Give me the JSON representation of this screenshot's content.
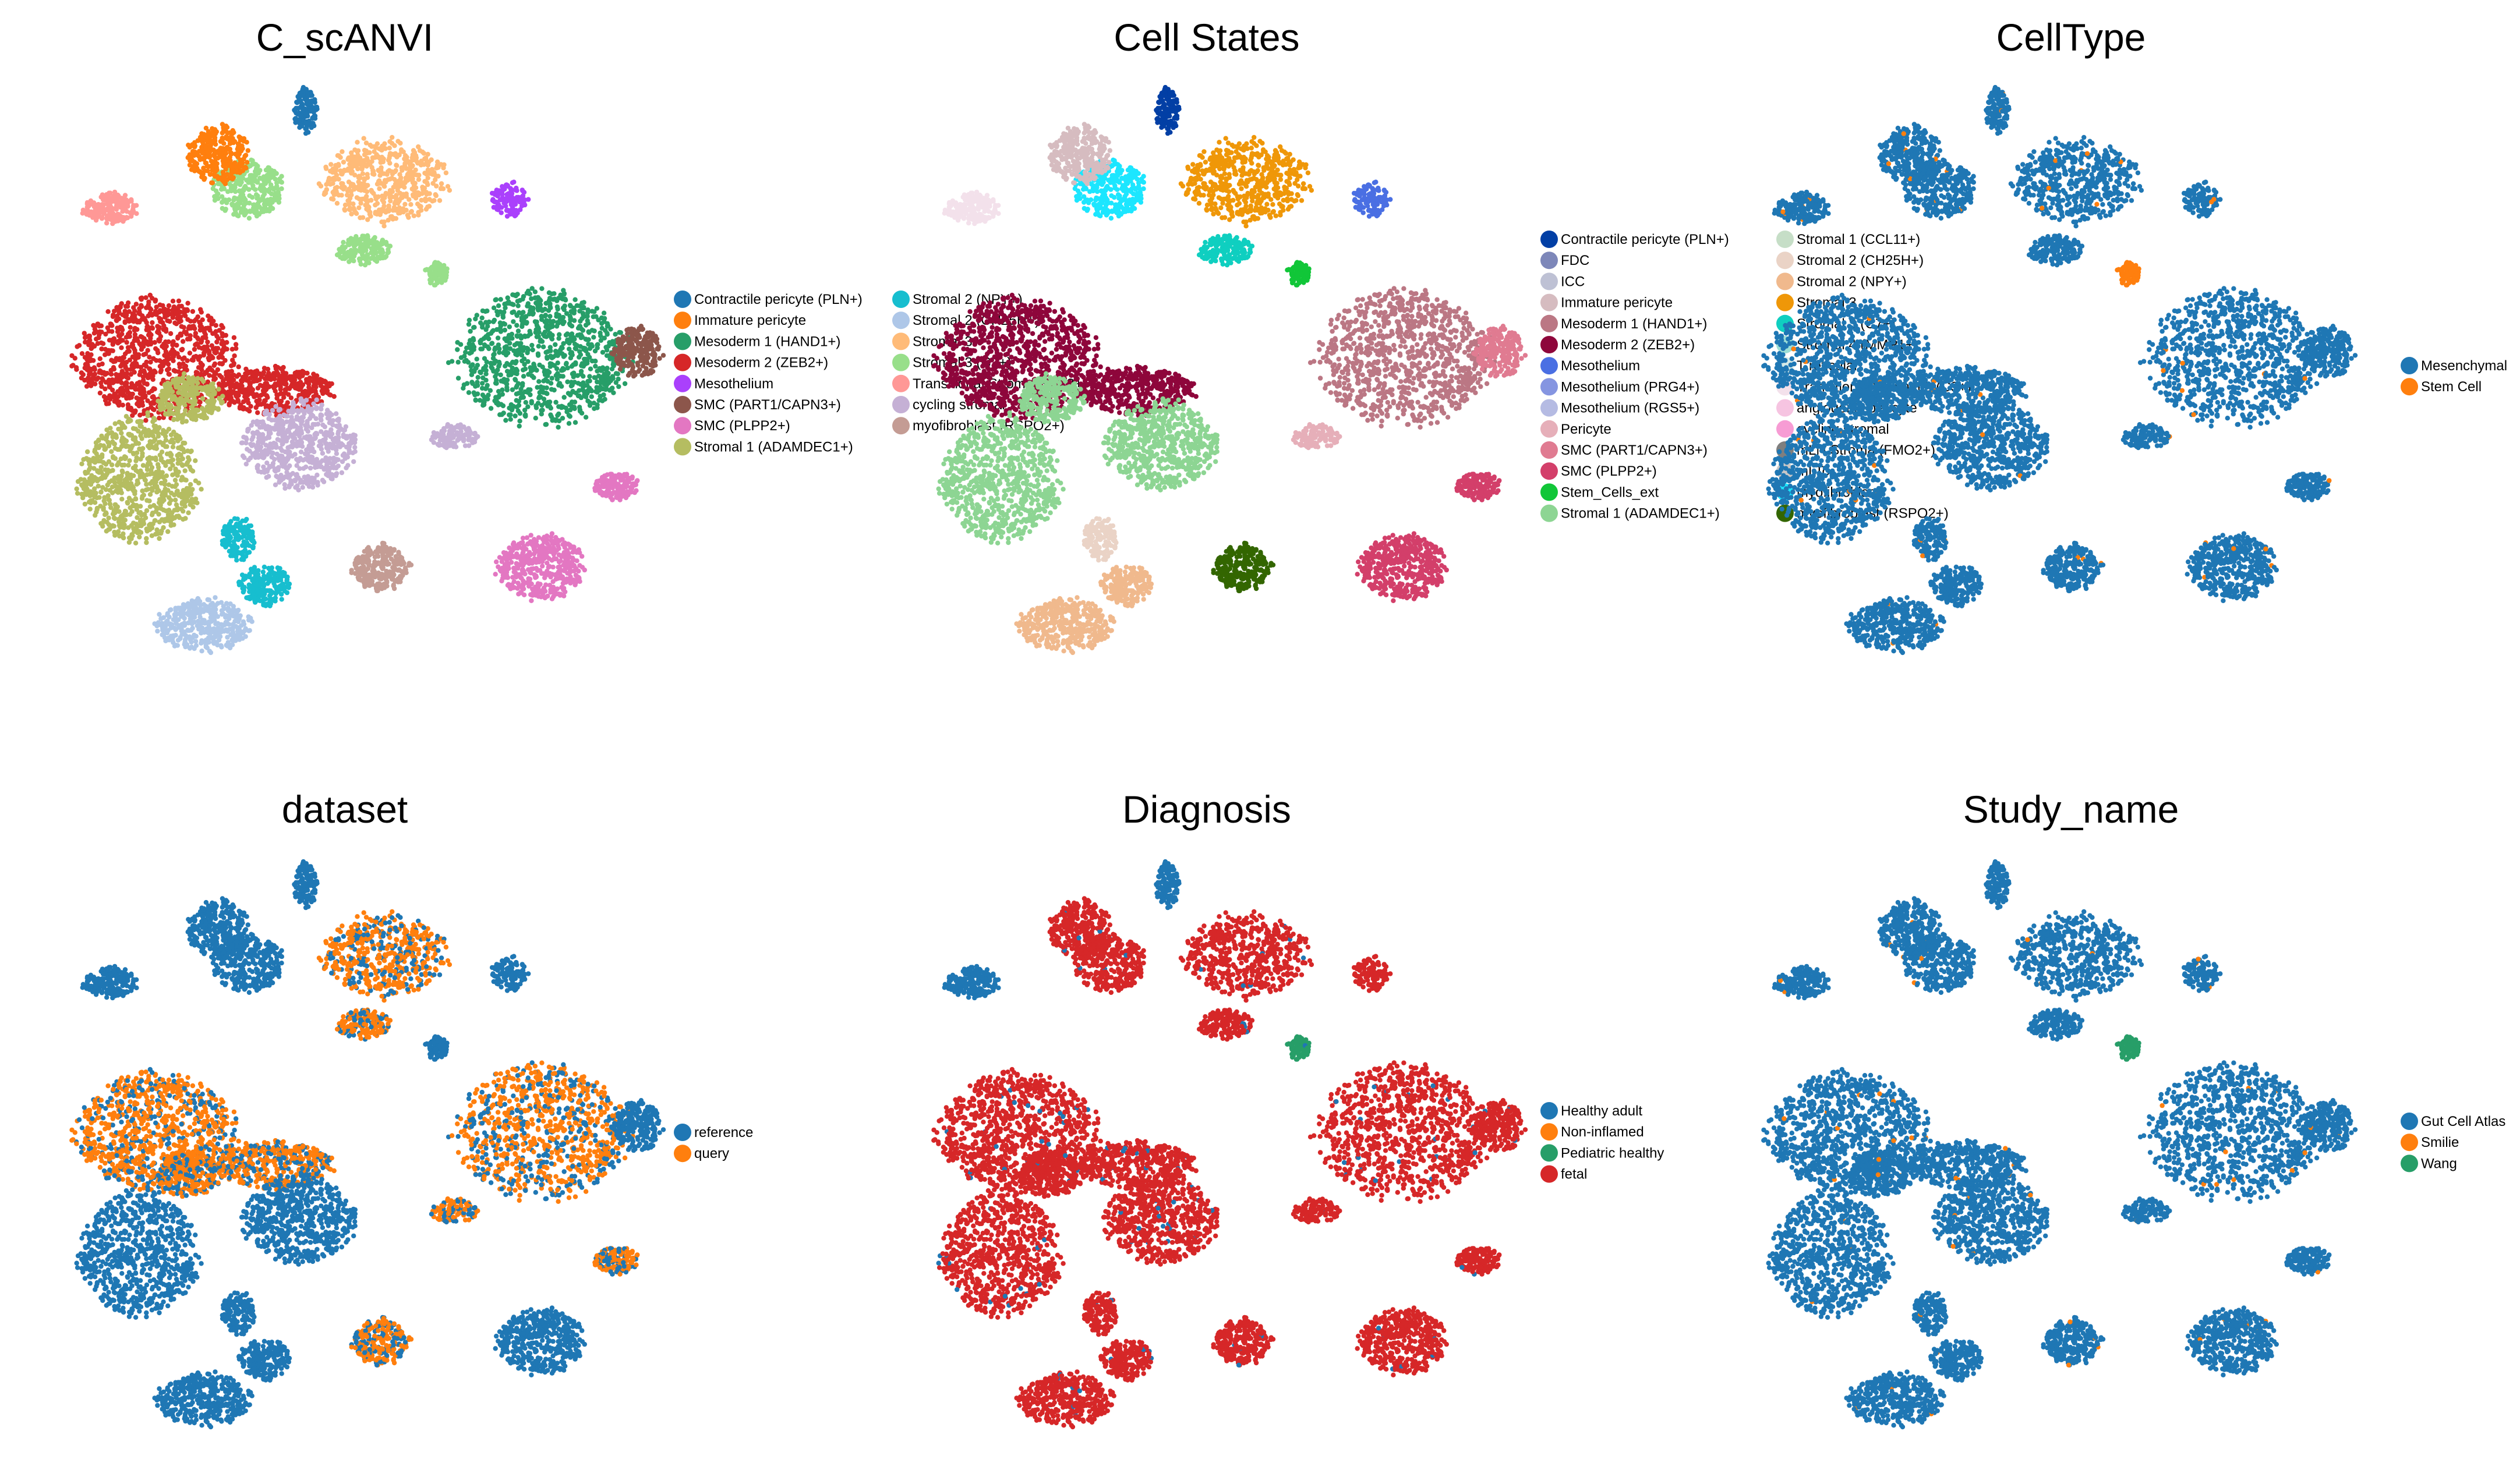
{
  "figure": {
    "title": ""
  },
  "chart_data": [
    {
      "type": "scatter",
      "title": "C_scANVI",
      "xlabel": "",
      "ylabel": "",
      "axes_visible": false,
      "grid": false,
      "legend_placement": "right",
      "legend_columns": 2,
      "legend": [
        {
          "label": "Contractile pericyte (PLN+)",
          "color": "#1f77b4"
        },
        {
          "label": "Immature pericyte",
          "color": "#ff7f0e"
        },
        {
          "label": "Mesoderm 1 (HAND1+)",
          "color": "#279e68"
        },
        {
          "label": "Mesoderm 2 (ZEB2+)",
          "color": "#d62728"
        },
        {
          "label": "Mesothelium",
          "color": "#aa40fc"
        },
        {
          "label": "SMC (PART1/CAPN3+)",
          "color": "#8c564b"
        },
        {
          "label": "SMC (PLPP2+)",
          "color": "#e377c2"
        },
        {
          "label": "Stromal 1 (ADAMDEC1+)",
          "color": "#b5bd61"
        },
        {
          "label": "Stromal 2 (NPY+)",
          "color": "#17becf"
        },
        {
          "label": "Stromal 2 (CH25H+)",
          "color": "#aec7e8"
        },
        {
          "label": "Stromal 3",
          "color": "#ffbb78"
        },
        {
          "label": "Stromal 3 (C7+)",
          "color": "#98df8a"
        },
        {
          "label": "Transitional Stromal 3 (C3+)",
          "color": "#ff9896"
        },
        {
          "label": "cycling stromal",
          "color": "#c5b0d5"
        },
        {
          "label": "myofibroblast (RSPO2+)",
          "color": "#c49c94"
        }
      ]
    },
    {
      "type": "scatter",
      "title": "Cell States",
      "xlabel": "",
      "ylabel": "",
      "axes_visible": false,
      "grid": false,
      "legend_placement": "right",
      "legend_columns": 2,
      "legend": [
        {
          "label": "Contractile pericyte (PLN+)",
          "color": "#023fa5"
        },
        {
          "label": "FDC",
          "color": "#7d87b9"
        },
        {
          "label": "ICC",
          "color": "#bec1d4"
        },
        {
          "label": "Immature pericyte",
          "color": "#d6bcc0"
        },
        {
          "label": "Mesoderm 1 (HAND1+)",
          "color": "#bb7784"
        },
        {
          "label": "Mesoderm 2 (ZEB2+)",
          "color": "#8e063b"
        },
        {
          "label": "Mesothelium",
          "color": "#4a6fe3"
        },
        {
          "label": "Mesothelium (PRG4+)",
          "color": "#8595e1"
        },
        {
          "label": "Mesothelium (RGS5+)",
          "color": "#b5bbe3"
        },
        {
          "label": "Pericyte",
          "color": "#e6afb9"
        },
        {
          "label": "SMC (PART1/CAPN3+)",
          "color": "#e07b91"
        },
        {
          "label": "SMC (PLPP2+)",
          "color": "#d33f6a"
        },
        {
          "label": "Stem_Cells_ext",
          "color": "#11c638"
        },
        {
          "label": "Stromal 1 (ADAMDEC1+)",
          "color": "#8dd593"
        },
        {
          "label": "Stromal 1 (CCL11+)",
          "color": "#c6dec7"
        },
        {
          "label": "Stromal 2 (CH25H+)",
          "color": "#ead3c6"
        },
        {
          "label": "Stromal 2 (NPY+)",
          "color": "#f0b98d"
        },
        {
          "label": "Stromal 3",
          "color": "#ef9708"
        },
        {
          "label": "Stromal 3 (C7+)",
          "color": "#0fcfc0"
        },
        {
          "label": "Stromal 4 (MMP1+)",
          "color": "#9cded6"
        },
        {
          "label": "T reticular",
          "color": "#d5eae7"
        },
        {
          "label": "Transitional Stromal 3 (C3+)",
          "color": "#f3e1eb"
        },
        {
          "label": "angiogenic pericyte",
          "color": "#f6c4e1"
        },
        {
          "label": "cycling stromal",
          "color": "#f79cd4"
        },
        {
          "label": "mLN Stroma (FMO2+)",
          "color": "#7f7f7f"
        },
        {
          "label": "mLTo",
          "color": "#c7c7c7"
        },
        {
          "label": "myofibroblast",
          "color": "#1ce6ff"
        },
        {
          "label": "myofibroblast (RSPO2+)",
          "color": "#336600"
        }
      ]
    },
    {
      "type": "scatter",
      "title": "CellType",
      "xlabel": "",
      "ylabel": "",
      "axes_visible": false,
      "grid": false,
      "legend_placement": "right",
      "legend_columns": 1,
      "legend": [
        {
          "label": "Mesenchymal",
          "color": "#1f77b4"
        },
        {
          "label": "Stem Cell",
          "color": "#ff7f0e"
        }
      ]
    },
    {
      "type": "scatter",
      "title": "dataset",
      "xlabel": "",
      "ylabel": "",
      "axes_visible": false,
      "grid": false,
      "legend_placement": "right",
      "legend_columns": 1,
      "legend": [
        {
          "label": "reference",
          "color": "#1f77b4"
        },
        {
          "label": "query",
          "color": "#ff7f0e"
        }
      ]
    },
    {
      "type": "scatter",
      "title": "Diagnosis",
      "xlabel": "",
      "ylabel": "",
      "axes_visible": false,
      "grid": false,
      "legend_placement": "right",
      "legend_columns": 1,
      "legend": [
        {
          "label": "Healthy adult",
          "color": "#1f77b4"
        },
        {
          "label": "Non-inflamed",
          "color": "#ff7f0e"
        },
        {
          "label": "Pediatric healthy",
          "color": "#279e68"
        },
        {
          "label": "fetal",
          "color": "#d62728"
        }
      ]
    },
    {
      "type": "scatter",
      "title": "Study_name",
      "xlabel": "",
      "ylabel": "",
      "axes_visible": false,
      "grid": false,
      "legend_placement": "right",
      "legend_columns": 1,
      "legend": [
        {
          "label": "Gut Cell Atlas",
          "color": "#1f77b4"
        },
        {
          "label": "Smilie",
          "color": "#ff7f0e"
        },
        {
          "label": "Wang",
          "color": "#279e68"
        }
      ]
    }
  ]
}
